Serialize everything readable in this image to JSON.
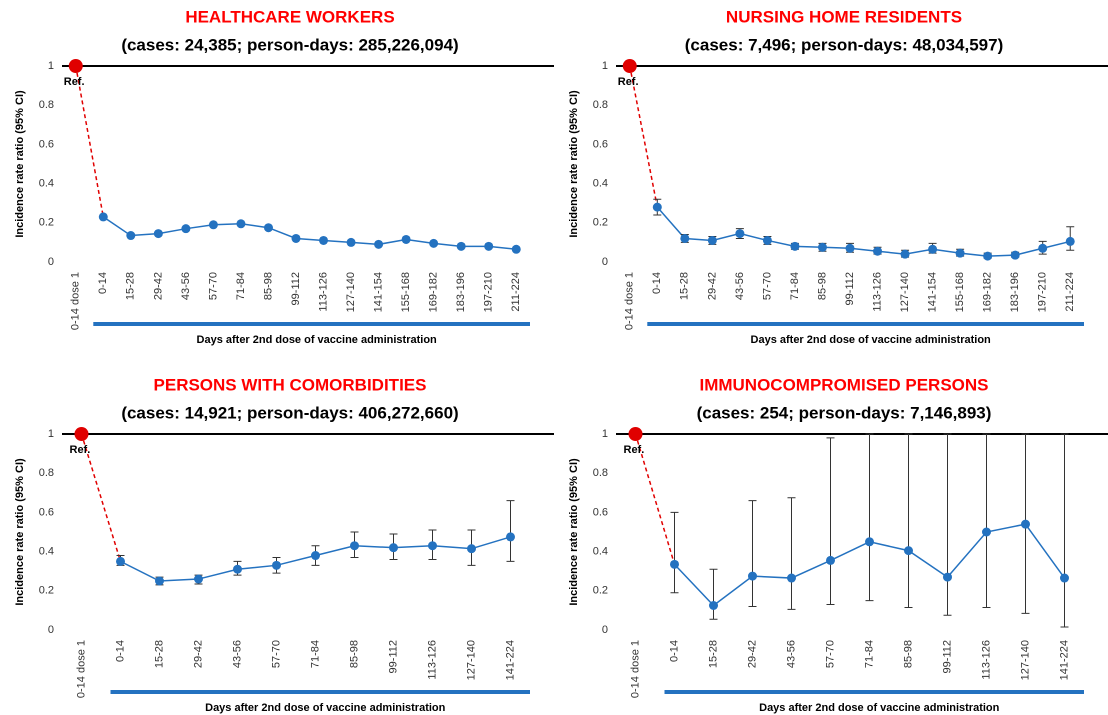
{
  "chart_data": [
    {
      "type": "line",
      "title": "HEALTHCARE WORKERS",
      "subtitle": "(cases: 24,385; person-days:  285,226,094)",
      "ylabel": "Incidence rate ratio (95% CI)",
      "xlabel": "Days after 2nd dose of vaccine administration",
      "annotation": "Ref.",
      "categories": [
        "0-14 dose 1",
        "0-14",
        "15-28",
        "29-42",
        "43-56",
        "57-70",
        "71-84",
        "85-98",
        "99-112",
        "113-126",
        "127-140",
        "141-154",
        "155-168",
        "169-182",
        "183-196",
        "197-210",
        "211-224"
      ],
      "series": [
        {
          "name": "Incidence rate ratio",
          "color": "#2472c0",
          "values": [
            1,
            0.23,
            0.135,
            0.145,
            0.17,
            0.19,
            0.195,
            0.175,
            0.12,
            0.11,
            0.1,
            0.09,
            0.115,
            0.095,
            0.08,
            0.08,
            0.065
          ]
        }
      ],
      "ref_color": "#e00000",
      "ylim": [
        0,
        1
      ],
      "yticks": [
        0,
        0.2,
        0.4,
        0.6,
        0.8,
        1
      ],
      "grid": false
    },
    {
      "type": "line",
      "title": "NURSING HOME RESIDENTS",
      "subtitle": "(cases: 7,496; person-days:  48,034,597)",
      "ylabel": "Incidence rate ratio (95% CI)",
      "xlabel": "Days after 2nd dose of vaccine administration",
      "annotation": "Ref.",
      "categories": [
        "0-14 dose 1",
        "0-14",
        "15-28",
        "29-42",
        "43-56",
        "57-70",
        "71-84",
        "85-98",
        "99-112",
        "113-126",
        "127-140",
        "141-154",
        "155-168",
        "169-182",
        "183-196",
        "197-210",
        "211-224"
      ],
      "series": [
        {
          "name": "Incidence rate ratio",
          "color": "#2472c0",
          "values": [
            1,
            0.28,
            0.12,
            0.11,
            0.145,
            0.11,
            0.08,
            0.075,
            0.07,
            0.055,
            0.04,
            0.065,
            0.045,
            0.03,
            0.035,
            0.07,
            0.105
          ],
          "ci_low": [
            null,
            0.24,
            0.1,
            0.09,
            0.12,
            0.09,
            0.065,
            0.055,
            0.05,
            0.04,
            0.025,
            0.045,
            0.03,
            0.02,
            0.025,
            0.04,
            0.06
          ],
          "ci_high": [
            null,
            0.32,
            0.14,
            0.13,
            0.17,
            0.13,
            0.095,
            0.095,
            0.095,
            0.075,
            0.06,
            0.095,
            0.065,
            0.045,
            0.05,
            0.105,
            0.18
          ]
        }
      ],
      "ref_color": "#e00000",
      "ylim": [
        0,
        1
      ],
      "yticks": [
        0,
        0.2,
        0.4,
        0.6,
        0.8,
        1
      ],
      "grid": false
    },
    {
      "type": "line",
      "title": "PERSONS WITH COMORBIDITIES",
      "subtitle": "(cases: 14,921; person-days:  406,272,660)",
      "ylabel": "Incidence rate ratio (95% CI)",
      "xlabel": "Days after 2nd dose of vaccine administration",
      "annotation": "Ref.",
      "categories": [
        "0-14 dose 1",
        "0-14",
        "15-28",
        "29-42",
        "43-56",
        "57-70",
        "71-84",
        "85-98",
        "99-112",
        "113-126",
        "127-140",
        "141-224"
      ],
      "series": [
        {
          "name": "Incidence rate ratio",
          "color": "#2472c0",
          "values": [
            1,
            0.35,
            0.25,
            0.26,
            0.31,
            0.33,
            0.38,
            0.43,
            0.42,
            0.43,
            0.415,
            0.475
          ],
          "ci_low": [
            null,
            0.33,
            0.23,
            0.235,
            0.28,
            0.29,
            0.33,
            0.37,
            0.36,
            0.36,
            0.33,
            0.35
          ],
          "ci_high": [
            null,
            0.38,
            0.27,
            0.28,
            0.35,
            0.37,
            0.43,
            0.5,
            0.49,
            0.51,
            0.51,
            0.66
          ]
        }
      ],
      "ref_color": "#e00000",
      "ylim": [
        0,
        1
      ],
      "yticks": [
        0,
        0.2,
        0.4,
        0.6,
        0.8,
        1
      ],
      "grid": false
    },
    {
      "type": "line",
      "title": "IMMUNOCOMPROMISED PERSONS",
      "subtitle": "(cases: 254; person-days:  7,146,893)",
      "ylabel": "Incidence rate ratio (95% CI)",
      "xlabel": "Days after 2nd dose of vaccine administration",
      "annotation": "Ref.",
      "categories": [
        "0-14 dose 1",
        "0-14",
        "15-28",
        "29-42",
        "43-56",
        "57-70",
        "71-84",
        "85-98",
        "99-112",
        "113-126",
        "127-140",
        "141-224"
      ],
      "series": [
        {
          "name": "Incidence rate ratio",
          "color": "#2472c0",
          "values": [
            1,
            0.335,
            0.125,
            0.275,
            0.265,
            0.355,
            0.45,
            0.405,
            0.27,
            0.5,
            0.54,
            0.265
          ],
          "ci_low": [
            null,
            0.19,
            0.055,
            0.12,
            0.105,
            0.13,
            0.15,
            0.115,
            0.075,
            0.115,
            0.085,
            0.015
          ],
          "ci_high": [
            null,
            0.6,
            0.31,
            0.66,
            0.675,
            0.98,
            1,
            1,
            1,
            1,
            1,
            1
          ]
        }
      ],
      "ref_color": "#e00000",
      "ylim": [
        0,
        1
      ],
      "yticks": [
        0,
        0.2,
        0.4,
        0.6,
        0.8,
        1
      ],
      "grid": false
    }
  ]
}
